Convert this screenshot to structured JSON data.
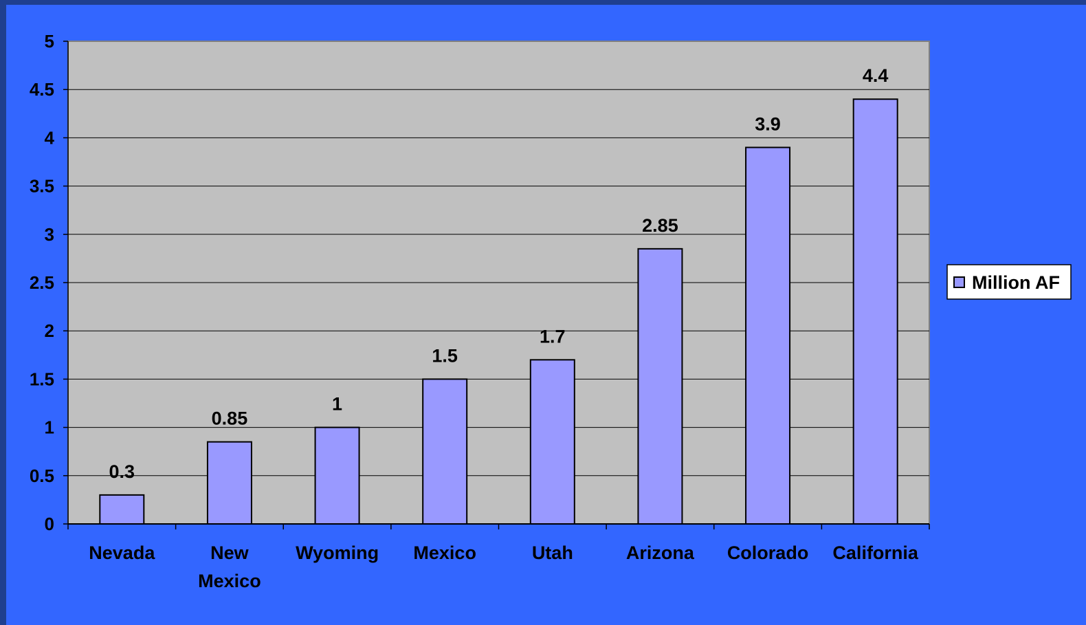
{
  "chart_data": {
    "type": "bar",
    "categories": [
      "Nevada",
      "New Mexico",
      "Wyoming",
      "Mexico",
      "Utah",
      "Arizona",
      "Colorado",
      "California"
    ],
    "series": [
      {
        "name": "Million AF",
        "values": [
          0.3,
          0.85,
          1,
          1.5,
          1.7,
          2.85,
          3.9,
          4.4
        ]
      }
    ],
    "data_labels": [
      "0.3",
      "0.85",
      "1",
      "1.5",
      "1.7",
      "2.85",
      "3.9",
      "4.4"
    ],
    "y_ticks": [
      "0",
      "0.5",
      "1",
      "1.5",
      "2",
      "2.5",
      "3",
      "3.5",
      "4",
      "4.5",
      "5"
    ],
    "ylim": [
      0,
      5
    ],
    "grid": true,
    "legend": "right",
    "title": "",
    "xlabel": "",
    "ylabel": ""
  },
  "colors": {
    "background": "#3366ff",
    "frame": "#1f3f8f",
    "plot_area": "#c0c0c0",
    "bar_fill": "#9999ff",
    "bar_stroke": "#000000",
    "gridline": "#000000"
  }
}
